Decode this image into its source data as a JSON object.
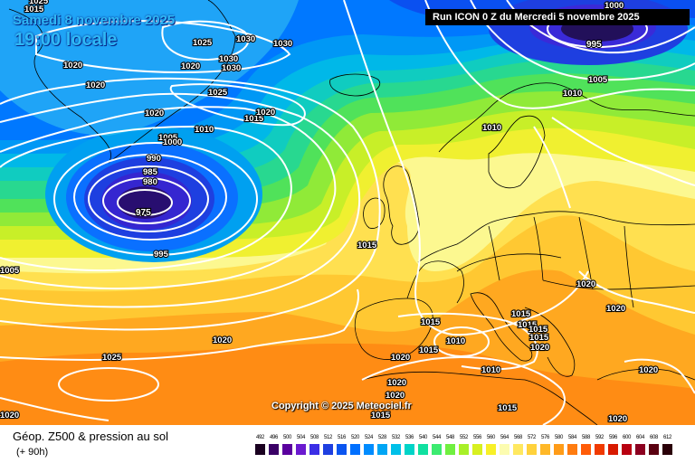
{
  "header": {
    "valid_date": "Samedi 8 novembre 2025",
    "valid_time": "19:00 locale",
    "run_info": "Run ICON 0 Z du Mercredi 5 novembre 2025"
  },
  "copyright": "Copyright © 2025 Meteociel.fr",
  "footer": {
    "product_title": "Géop. Z500 & pression au sol",
    "forecast_hour": "(+ 90h)"
  },
  "legend": {
    "values": [
      "492",
      "496",
      "500",
      "504",
      "508",
      "512",
      "516",
      "520",
      "524",
      "528",
      "532",
      "536",
      "540",
      "544",
      "548",
      "552",
      "556",
      "560",
      "564",
      "568",
      "572",
      "576",
      "580",
      "584",
      "588",
      "592",
      "596",
      "600",
      "604",
      "608",
      "612"
    ],
    "colors": [
      "#1a0020",
      "#3a0066",
      "#5a009e",
      "#6b1ad0",
      "#3b2ee6",
      "#1e3fe0",
      "#0a55f0",
      "#0070ff",
      "#008cff",
      "#00a6f5",
      "#00c0e8",
      "#00d4c8",
      "#10e0a0",
      "#3ceb70",
      "#70f040",
      "#a8f028",
      "#d8f020",
      "#f8f028",
      "#fcfcb0",
      "#ffe860",
      "#ffd23c",
      "#ffb828",
      "#ff9c18",
      "#ff7c10",
      "#ff5c08",
      "#f03a00",
      "#d81a00",
      "#b80010",
      "#8c0020",
      "#5a0010",
      "#2a0008"
    ]
  },
  "isobar_labels": [
    "1025",
    "1015",
    "1020",
    "1025",
    "1030",
    "1030",
    "1020",
    "1020",
    "1030",
    "1030",
    "1025",
    "1020",
    "1005",
    "1000",
    "990",
    "985",
    "980",
    "975",
    "995",
    "1010",
    "1015",
    "1020",
    "1015",
    "1005",
    "1020",
    "1025",
    "1020",
    "1000",
    "995",
    "1005",
    "1010",
    "1010",
    "1015",
    "1020",
    "1020",
    "1015",
    "1015",
    "1015",
    "1015",
    "1010",
    "1020",
    "1015",
    "1010",
    "1020",
    "1020",
    "1020",
    "1015",
    "1015",
    "1020",
    "1020"
  ]
}
